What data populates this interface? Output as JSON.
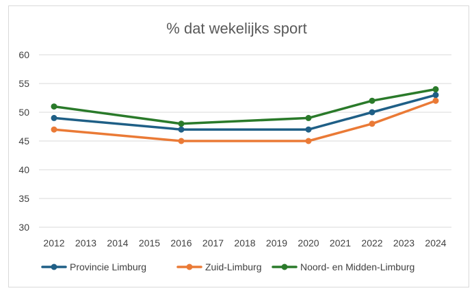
{
  "chart_data": {
    "type": "line",
    "title": "% dat wekelijks sport",
    "xlabel": "",
    "ylabel": "",
    "categories": [
      "2012",
      "2013",
      "2014",
      "2015",
      "2016",
      "2017",
      "2018",
      "2019",
      "2020",
      "2021",
      "2022",
      "2023",
      "2024"
    ],
    "ylim": [
      30,
      60
    ],
    "yticks": [
      30,
      35,
      40,
      45,
      50,
      55,
      60
    ],
    "grid": true,
    "legend_position": "bottom",
    "series": [
      {
        "name": "Provincie Limburg",
        "color": "#1f5f86",
        "points": [
          [
            2012,
            49
          ],
          [
            2016,
            47
          ],
          [
            2020,
            47
          ],
          [
            2022,
            50
          ],
          [
            2024,
            53
          ]
        ]
      },
      {
        "name": "Zuid-Limburg",
        "color": "#ea7a36",
        "points": [
          [
            2012,
            47
          ],
          [
            2016,
            45
          ],
          [
            2020,
            45
          ],
          [
            2022,
            48
          ],
          [
            2024,
            52
          ]
        ]
      },
      {
        "name": "Noord- en Midden-Limburg",
        "color": "#2a7a2a",
        "points": [
          [
            2012,
            51
          ],
          [
            2016,
            48
          ],
          [
            2020,
            49
          ],
          [
            2022,
            52
          ],
          [
            2024,
            54
          ]
        ]
      }
    ]
  }
}
